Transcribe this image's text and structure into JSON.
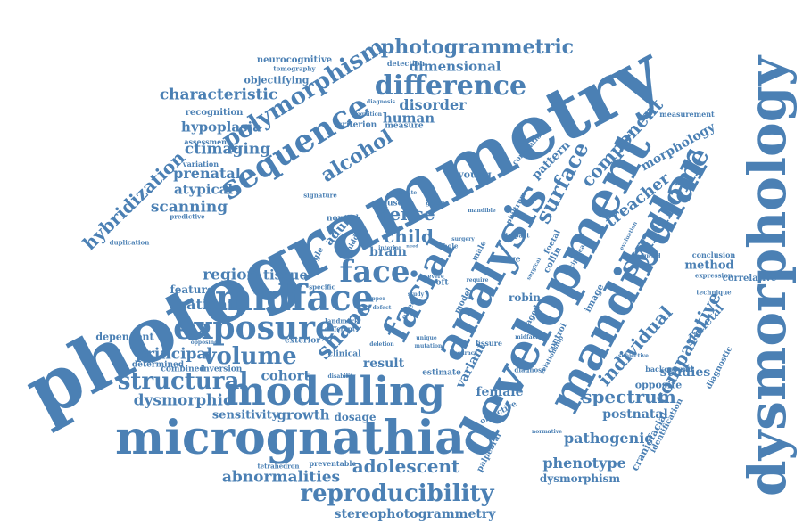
{
  "color": "#4b80b4",
  "background": "#ffffff",
  "words": [
    {
      "text": "photogrammetry",
      "size": 6,
      "rotation": "slanted"
    },
    {
      "text": "dysmorphology",
      "size": 6,
      "rotation": "vertical"
    },
    {
      "text": "development",
      "size": 5,
      "rotation": "slanted"
    },
    {
      "text": "micrognathia",
      "size": 5,
      "rotation": "horizontal"
    },
    {
      "text": "mandibular",
      "size": 4,
      "rotation": "slanted"
    },
    {
      "text": "analysis",
      "size": 4,
      "rotation": "slanted"
    },
    {
      "text": "facial",
      "size": 4,
      "rotation": "slanted"
    },
    {
      "text": "modelling",
      "size": 4,
      "rotation": "horizontal"
    },
    {
      "text": "sequence",
      "size": 3,
      "rotation": "slanted"
    },
    {
      "text": "midface",
      "size": 3,
      "rotation": "horizontal"
    },
    {
      "text": "exposure",
      "size": 3,
      "rotation": "horizontal"
    },
    {
      "text": "face",
      "size": 3,
      "rotation": "horizontal"
    },
    {
      "text": "difference",
      "size": 3,
      "rotation": "horizontal"
    },
    {
      "text": "reproducibility",
      "size": 3,
      "rotation": "horizontal"
    },
    {
      "text": "syndrome",
      "size": 3,
      "rotation": "slanted"
    },
    {
      "text": "polymorphism",
      "size": 2,
      "rotation": "slanted"
    },
    {
      "text": "photogrammetric",
      "size": 2,
      "rotation": "horizontal"
    },
    {
      "text": "structural",
      "size": 2,
      "rotation": "horizontal"
    },
    {
      "text": "volume",
      "size": 2,
      "rotation": "horizontal"
    },
    {
      "text": "shape",
      "size": 2,
      "rotation": "slanted"
    },
    {
      "text": "surface",
      "size": 2,
      "rotation": "slanted"
    },
    {
      "text": "alcohol",
      "size": 2,
      "rotation": "slanted"
    },
    {
      "text": "hybridization",
      "size": 2,
      "rotation": "slanted"
    },
    {
      "text": "dense",
      "size": 2,
      "rotation": "horizontal"
    },
    {
      "text": "child",
      "size": 2,
      "rotation": "horizontal"
    },
    {
      "text": "adolescent",
      "size": 2,
      "rotation": "horizontal"
    },
    {
      "text": "abnormalities",
      "size": 1,
      "rotation": "horizontal"
    },
    {
      "text": "spectrum",
      "size": 2,
      "rotation": "horizontal"
    },
    {
      "text": "individual",
      "size": 2,
      "rotation": "slanted"
    },
    {
      "text": "comparative",
      "size": 2,
      "rotation": "slanted"
    },
    {
      "text": "component",
      "size": 2,
      "rotation": "slanted"
    },
    {
      "text": "treacher",
      "size": 2,
      "rotation": "slanted"
    },
    {
      "text": "morphology",
      "size": 1,
      "rotation": "slanted"
    },
    {
      "text": "characteristic",
      "size": 1,
      "rotation": "horizontal"
    },
    {
      "text": "dimensional",
      "size": 1,
      "rotation": "horizontal"
    },
    {
      "text": "disorder",
      "size": 1,
      "rotation": "horizontal"
    },
    {
      "text": "human",
      "size": 1,
      "rotation": "horizontal"
    },
    {
      "text": "hypoplasia",
      "size": 1,
      "rotation": "horizontal"
    },
    {
      "text": "ctimaging",
      "size": 1,
      "rotation": "horizontal"
    },
    {
      "text": "prenatal",
      "size": 1,
      "rotation": "horizontal"
    },
    {
      "text": "atypical",
      "size": 1,
      "rotation": "horizontal"
    },
    {
      "text": "scanning",
      "size": 1,
      "rotation": "horizontal"
    },
    {
      "text": "region",
      "size": 1,
      "rotation": "horizontal"
    },
    {
      "text": "tissue",
      "size": 1,
      "rotation": "horizontal"
    },
    {
      "text": "patient",
      "size": 1,
      "rotation": "horizontal"
    },
    {
      "text": "principal",
      "size": 1,
      "rotation": "horizontal"
    },
    {
      "text": "dysmorphic",
      "size": 1,
      "rotation": "horizontal"
    },
    {
      "text": "cohort",
      "size": 1,
      "rotation": "horizontal"
    },
    {
      "text": "growth",
      "size": 1,
      "rotation": "horizontal"
    },
    {
      "text": "sensitivity",
      "size": 1,
      "rotation": "horizontal"
    },
    {
      "text": "result",
      "size": 1,
      "rotation": "horizontal"
    },
    {
      "text": "brain",
      "size": 1,
      "rotation": "horizontal"
    },
    {
      "text": "adult",
      "size": 1,
      "rotation": "slanted"
    },
    {
      "text": "pathogenic",
      "size": 1,
      "rotation": "horizontal"
    },
    {
      "text": "phenotype",
      "size": 1,
      "rotation": "horizontal"
    },
    {
      "text": "postnatal",
      "size": 1,
      "rotation": "horizontal"
    },
    {
      "text": "studies",
      "size": 1,
      "rotation": "horizontal"
    },
    {
      "text": "method",
      "size": 1,
      "rotation": "horizontal"
    },
    {
      "text": "skeletal",
      "size": 1,
      "rotation": "slanted"
    },
    {
      "text": "pattern",
      "size": 1,
      "rotation": "slanted"
    },
    {
      "text": "variant",
      "size": 1,
      "rotation": "slanted"
    },
    {
      "text": "female",
      "size": 1,
      "rotation": "horizontal"
    },
    {
      "text": "stereophotogrammetry",
      "size": 1,
      "rotation": "horizontal"
    },
    {
      "text": "dysmorphism",
      "size": 1,
      "rotation": "horizontal"
    },
    {
      "text": "young",
      "size": 1,
      "rotation": "horizontal"
    },
    {
      "text": "robin",
      "size": 1,
      "rotation": "horizontal"
    },
    {
      "text": "dosage",
      "size": 1,
      "rotation": "horizontal"
    },
    {
      "text": "feature",
      "size": 1,
      "rotation": "horizontal"
    },
    {
      "text": "dependent",
      "size": 1,
      "rotation": "horizontal"
    },
    {
      "text": "correlative",
      "size": 1,
      "rotation": "horizontal"
    },
    {
      "text": "neurocognitive",
      "size": 1,
      "rotation": "horizontal"
    },
    {
      "text": "objectifying",
      "size": 1,
      "rotation": "horizontal"
    },
    {
      "text": "tomography",
      "size": 0,
      "rotation": "horizontal"
    },
    {
      "text": "recognition",
      "size": 0,
      "rotation": "horizontal"
    },
    {
      "text": "detection",
      "size": 0,
      "rotation": "horizontal"
    },
    {
      "text": "measurement",
      "size": 0,
      "rotation": "horizontal"
    },
    {
      "text": "criterion",
      "size": 0,
      "rotation": "horizontal"
    },
    {
      "text": "measure",
      "size": 0,
      "rotation": "horizontal"
    },
    {
      "text": "cognition",
      "size": 0,
      "rotation": "horizontal"
    },
    {
      "text": "diagnosis",
      "size": 0,
      "rotation": "horizontal"
    },
    {
      "text": "assessment",
      "size": 0,
      "rotation": "horizontal"
    },
    {
      "text": "variation",
      "size": 0,
      "rotation": "horizontal"
    },
    {
      "text": "predictive",
      "size": 0,
      "rotation": "horizontal"
    },
    {
      "text": "signature",
      "size": 0,
      "rotation": "horizontal"
    },
    {
      "text": "evaluate",
      "size": 0,
      "rotation": "horizontal"
    },
    {
      "text": "cause",
      "size": 0,
      "rotation": "horizontal"
    },
    {
      "text": "normal",
      "size": 0,
      "rotation": "horizontal"
    },
    {
      "text": "duplication",
      "size": 0,
      "rotation": "horizontal"
    },
    {
      "text": "single",
      "size": 0,
      "rotation": "slanted"
    },
    {
      "text": "middle",
      "size": 0,
      "rotation": "slanted"
    },
    {
      "text": "specific",
      "size": 0,
      "rotation": "horizontal"
    },
    {
      "text": "landmark",
      "size": 0,
      "rotation": "horizontal"
    },
    {
      "text": "different",
      "size": 0,
      "rotation": "horizontal"
    },
    {
      "text": "opposing",
      "size": 0,
      "rotation": "horizontal"
    },
    {
      "text": "exterior",
      "size": 0,
      "rotation": "horizontal"
    },
    {
      "text": "determined",
      "size": 0,
      "rotation": "horizontal"
    },
    {
      "text": "combined",
      "size": 0,
      "rotation": "horizontal"
    },
    {
      "text": "inversion",
      "size": 0,
      "rotation": "horizontal"
    },
    {
      "text": "clinical",
      "size": 0,
      "rotation": "horizontal"
    },
    {
      "text": "deletion",
      "size": 0,
      "rotation": "horizontal"
    },
    {
      "text": "disability",
      "size": 0,
      "rotation": "horizontal"
    },
    {
      "text": "estimate",
      "size": 0,
      "rotation": "horizontal"
    },
    {
      "text": "tetrahedron",
      "size": 0,
      "rotation": "horizontal"
    },
    {
      "text": "preventable",
      "size": 0,
      "rotation": "horizontal"
    },
    {
      "text": "objective",
      "size": 0,
      "rotation": "horizontal"
    },
    {
      "text": "palpebral",
      "size": 0,
      "rotation": "slanted"
    },
    {
      "text": "fissure",
      "size": 0,
      "rotation": "horizontal"
    },
    {
      "text": "accuracy",
      "size": 0,
      "rotation": "horizontal"
    },
    {
      "text": "diagnose",
      "size": 0,
      "rotation": "horizontal"
    },
    {
      "text": "normative",
      "size": 0,
      "rotation": "horizontal"
    },
    {
      "text": "subjective",
      "size": 0,
      "rotation": "horizontal"
    },
    {
      "text": "craniofacial",
      "size": 0,
      "rotation": "slanted"
    },
    {
      "text": "identification",
      "size": 0,
      "rotation": "slanted"
    },
    {
      "text": "opposite",
      "size": 0,
      "rotation": "horizontal"
    },
    {
      "text": "background",
      "size": 0,
      "rotation": "horizontal"
    },
    {
      "text": "diagnostic",
      "size": 0,
      "rotation": "slanted"
    },
    {
      "text": "technique",
      "size": 0,
      "rotation": "horizontal"
    },
    {
      "text": "expression",
      "size": 0,
      "rotation": "horizontal"
    },
    {
      "text": "conclusion",
      "size": 0,
      "rotation": "horizontal"
    },
    {
      "text": "induced",
      "size": 0,
      "rotation": "horizontal"
    },
    {
      "text": "evaluation",
      "size": 0,
      "rotation": "horizontal"
    },
    {
      "text": "image",
      "size": 0,
      "rotation": "slanted"
    },
    {
      "text": "collin",
      "size": 0,
      "rotation": "slanted"
    },
    {
      "text": "foetal",
      "size": 0,
      "rotation": "slanted"
    },
    {
      "text": "reciprocal",
      "size": 0,
      "rotation": "slanted"
    },
    {
      "text": "impact",
      "size": 0,
      "rotation": "horizontal"
    },
    {
      "text": "philtrum",
      "size": 0,
      "rotation": "slanted"
    },
    {
      "text": "mandible",
      "size": 0,
      "rotation": "horizontal"
    },
    {
      "text": "genetic",
      "size": 0,
      "rotation": "horizontal"
    },
    {
      "text": "surgery",
      "size": 0,
      "rotation": "horizontal"
    },
    {
      "text": "whole",
      "size": 0,
      "rotation": "horizontal"
    },
    {
      "text": "male",
      "size": 0,
      "rotation": "slanted"
    },
    {
      "text": "stage",
      "size": 0,
      "rotation": "horizontal"
    },
    {
      "text": "soft",
      "size": 0,
      "rotation": "horizontal"
    },
    {
      "text": "require",
      "size": 0,
      "rotation": "horizontal"
    },
    {
      "text": "study",
      "size": 0,
      "rotation": "horizontal"
    },
    {
      "text": "upper",
      "size": 0,
      "rotation": "horizontal"
    },
    {
      "text": "defect",
      "size": 0,
      "rotation": "horizontal"
    },
    {
      "text": "model",
      "size": 0,
      "rotation": "slanted"
    },
    {
      "text": "effect",
      "size": 0,
      "rotation": "slanted"
    },
    {
      "text": "unique",
      "size": 0,
      "rotation": "horizontal"
    },
    {
      "text": "mutation",
      "size": 0,
      "rotation": "horizontal"
    },
    {
      "text": "aged",
      "size": 0,
      "rotation": "slanted"
    },
    {
      "text": "control",
      "size": 0,
      "rotation": "slanted"
    },
    {
      "text": "relationship",
      "size": 0,
      "rotation": "slanted"
    },
    {
      "text": "midfacial",
      "size": 0,
      "rotation": "horizontal"
    },
    {
      "text": "correlation",
      "size": 0,
      "rotation": "slanted"
    },
    {
      "text": "severe",
      "size": 0,
      "rotation": "horizontal"
    },
    {
      "text": "interior",
      "size": 0,
      "rotation": "horizontal"
    },
    {
      "text": "need",
      "size": 0,
      "rotation": "horizontal"
    },
    {
      "text": "surgical",
      "size": 0,
      "rotation": "slanted"
    }
  ]
}
